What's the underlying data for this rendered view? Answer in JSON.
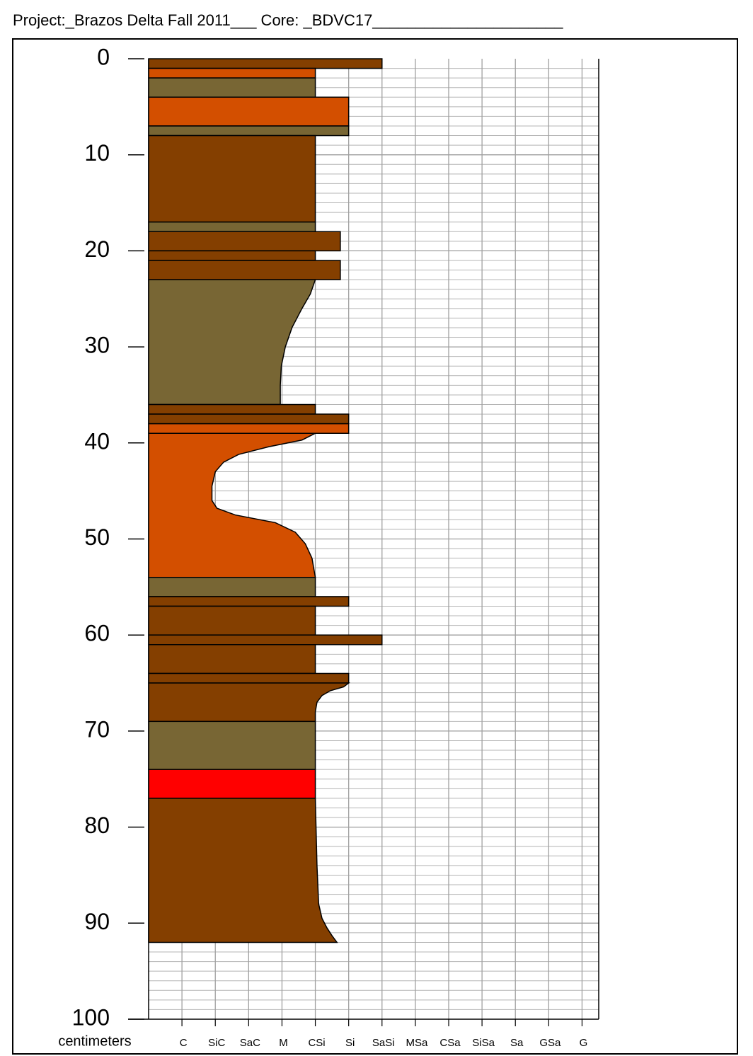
{
  "chart_data": {
    "type": "core-log",
    "title": "Project:_Brazos Delta Fall 2011___   Core: _BDVC17______________________",
    "ylabel": "centimeters",
    "ylim": [
      0,
      100
    ],
    "yticks": [
      0,
      10,
      20,
      30,
      40,
      50,
      60,
      70,
      80,
      90,
      100
    ],
    "y_inverted": true,
    "minor_step": 1,
    "xlim": [
      0,
      13.5
    ],
    "xticks": [
      {
        "value": 1,
        "label": "C"
      },
      {
        "value": 2,
        "label": "SiC"
      },
      {
        "value": 3,
        "label": "SaC"
      },
      {
        "value": 4,
        "label": "M"
      },
      {
        "value": 5,
        "label": "CSi"
      },
      {
        "value": 6,
        "label": "Si"
      },
      {
        "value": 7,
        "label": "SaSi"
      },
      {
        "value": 8,
        "label": "MSa"
      },
      {
        "value": 9,
        "label": "CSa"
      },
      {
        "value": 10,
        "label": "SiSa"
      },
      {
        "value": 11,
        "label": "Sa"
      },
      {
        "value": 12,
        "label": "GSa"
      },
      {
        "value": 13,
        "label": "G"
      }
    ],
    "grid": true,
    "layers": [
      {
        "top": 0,
        "bottom": 1,
        "grain": 7,
        "color": "#843f00"
      },
      {
        "top": 1,
        "bottom": 2,
        "grain": 5,
        "color": "#d34f00"
      },
      {
        "top": 2,
        "bottom": 4,
        "grain": 5,
        "color": "#786634"
      },
      {
        "top": 4,
        "bottom": 7,
        "grain": 6,
        "color": "#d34f00"
      },
      {
        "top": 7,
        "bottom": 8,
        "grain": 6,
        "color": "#786634"
      },
      {
        "top": 8,
        "bottom": 17,
        "grain": 5,
        "color": "#843f00"
      },
      {
        "top": 17,
        "bottom": 18,
        "grain": 5,
        "color": "#786634"
      },
      {
        "top": 18,
        "bottom": 20,
        "grain": 5.75,
        "color": "#843f00"
      },
      {
        "top": 20,
        "bottom": 21,
        "grain": 5,
        "color": "#843f00"
      },
      {
        "top": 21,
        "bottom": 23,
        "grain": 5.75,
        "color": "#843f00"
      },
      {
        "top": 23,
        "bottom": 36,
        "color": "#786634",
        "profile": {
          "depths": [
            23,
            24.5,
            26,
            28,
            30,
            32,
            34,
            36
          ],
          "grains": [
            5,
            4.85,
            4.6,
            4.3,
            4.1,
            3.98,
            3.95,
            3.95
          ]
        }
      },
      {
        "top": 36,
        "bottom": 37,
        "grain": 5,
        "color": "#843f00"
      },
      {
        "top": 37,
        "bottom": 38,
        "grain": 6,
        "color": "#843f00"
      },
      {
        "top": 38,
        "bottom": 39,
        "grain": 6,
        "color": "#d34f00"
      },
      {
        "top": 39,
        "bottom": 54,
        "color": "#d34f00",
        "profile": {
          "depths": [
            39,
            39.7,
            40.4,
            41.2,
            42,
            43,
            44.5,
            46,
            46.8,
            47.5,
            48.3,
            49.3,
            50.5,
            52,
            54
          ],
          "grains": [
            5,
            4.6,
            3.6,
            2.7,
            2.25,
            2,
            1.9,
            1.9,
            2.05,
            2.6,
            3.8,
            4.4,
            4.7,
            4.9,
            5
          ]
        }
      },
      {
        "top": 54,
        "bottom": 56,
        "grain": 5,
        "color": "#786634"
      },
      {
        "top": 56,
        "bottom": 57,
        "grain": 6,
        "color": "#843f00"
      },
      {
        "top": 57,
        "bottom": 60,
        "grain": 5,
        "color": "#843f00"
      },
      {
        "top": 60,
        "bottom": 61,
        "grain": 7,
        "color": "#843f00"
      },
      {
        "top": 61,
        "bottom": 64,
        "grain": 5,
        "color": "#843f00"
      },
      {
        "top": 64,
        "bottom": 65,
        "grain": 6,
        "color": "#843f00"
      },
      {
        "top": 65,
        "bottom": 69,
        "color": "#843f00",
        "profile": {
          "depths": [
            65,
            65.4,
            65.8,
            66.3,
            67,
            68,
            69
          ],
          "grains": [
            6,
            5.85,
            5.45,
            5.2,
            5.05,
            5,
            5
          ]
        }
      },
      {
        "top": 69,
        "bottom": 74,
        "grain": 5,
        "color": "#786634"
      },
      {
        "top": 74,
        "bottom": 77,
        "grain": 5,
        "color": "#ff0000"
      },
      {
        "top": 77,
        "bottom": 92,
        "color": "#843f00",
        "profile": {
          "depths": [
            77,
            84,
            88,
            89.5,
            90.5,
            91.3,
            92
          ],
          "grains": [
            5,
            5.05,
            5.1,
            5.2,
            5.35,
            5.5,
            5.65
          ]
        }
      }
    ]
  }
}
